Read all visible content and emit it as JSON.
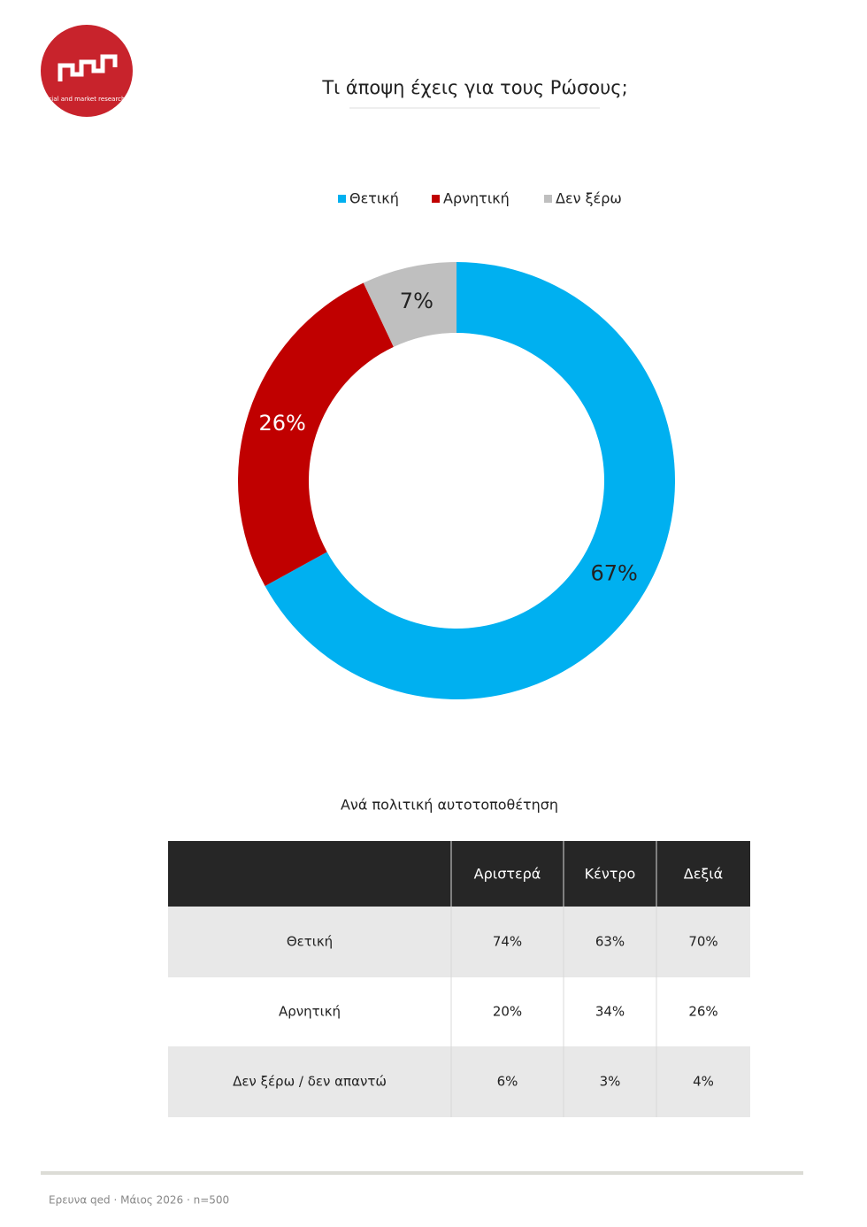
{
  "logo": {
    "text": "social and market research"
  },
  "chart_data": {
    "type": "pie",
    "title": "Τι άποψη έχεις για τους Ρώσους;",
    "categories": [
      "Θετική",
      "Αρνητική",
      "Δεν ξέρω"
    ],
    "values": [
      67,
      26,
      7
    ],
    "value_labels": [
      "67%",
      "26%",
      "7%"
    ],
    "colors": [
      "#00b0f0",
      "#c00000",
      "#bfbfbf"
    ],
    "legend": "top"
  },
  "table": {
    "title": "Ανά πολιτική αυτοτοποθέτηση",
    "columns": [
      "Αριστερά",
      "Κέντρο",
      "Δεξιά"
    ],
    "rows": [
      {
        "label": "Θετική",
        "cells": [
          "74%",
          "63%",
          "70%"
        ]
      },
      {
        "label": "Αρνητική",
        "cells": [
          "20%",
          "34%",
          "26%"
        ]
      },
      {
        "label": "Δεν ξέρω / δεν απαντώ",
        "cells": [
          "6%",
          "3%",
          "4%"
        ]
      }
    ]
  },
  "footer": "Ερευνα qed · Μάιος 2026 · n=500"
}
